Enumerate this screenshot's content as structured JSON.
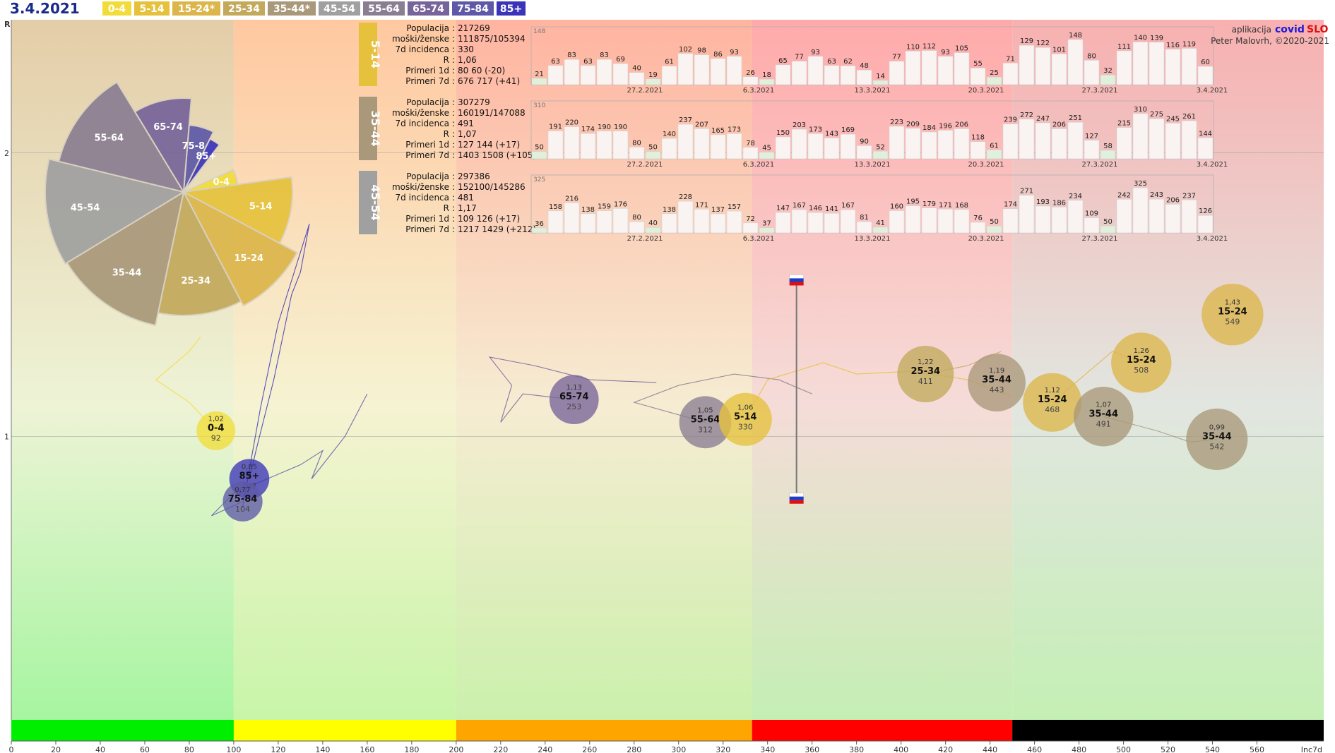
{
  "date": "3.4.2021",
  "colors": {
    "0-4": "#f2dc3a",
    "5-14": "#e6c23c",
    "15-24": "#dcb64a",
    "25-34": "#c2a95c",
    "35-44": "#a9987a",
    "45-54": "#a0a0a0",
    "55-64": "#8a7e92",
    "65-74": "#77649a",
    "75-84": "#5e58a8",
    "85+": "#3b34b8"
  },
  "legend": [
    {
      "label": "0-4",
      "key": "0-4"
    },
    {
      "label": "5-14",
      "key": "5-14"
    },
    {
      "label": "15-24*",
      "key": "15-24"
    },
    {
      "label": "25-34",
      "key": "25-34"
    },
    {
      "label": "35-44*",
      "key": "35-44"
    },
    {
      "label": "45-54",
      "key": "45-54"
    },
    {
      "label": "55-64",
      "key": "55-64"
    },
    {
      "label": "65-74",
      "key": "65-74"
    },
    {
      "label": "75-84",
      "key": "75-84"
    },
    {
      "label": "85+",
      "key": "85+"
    }
  ],
  "credit": {
    "app_prefix": "aplikacija",
    "app_name_a": "covid",
    "app_name_b": "SLO",
    "author": "Peter Malovrh, ©2020-2021"
  },
  "chart_data": {
    "type": "scatter",
    "x_axis": {
      "label": "Inc7d",
      "range": [
        0,
        590
      ],
      "ticks": [
        0,
        20,
        40,
        60,
        80,
        100,
        120,
        140,
        160,
        180,
        200,
        220,
        240,
        260,
        280,
        300,
        320,
        340,
        360,
        380,
        400,
        420,
        440,
        460,
        480,
        500,
        520,
        540,
        560
      ]
    },
    "y_axis": {
      "label": "R",
      "range": [
        0.0,
        2.47
      ],
      "ticks": [
        1,
        2
      ]
    },
    "zones": [
      {
        "from": 0,
        "to": 100,
        "color": "#00ee00"
      },
      {
        "from": 100,
        "to": 200,
        "color": "#ffff00"
      },
      {
        "from": 200,
        "to": 333,
        "color": "#ffa500"
      },
      {
        "from": 333,
        "to": 450,
        "color": "#ff0000"
      },
      {
        "from": 450,
        "to": 590,
        "color": "#000000"
      }
    ],
    "bubbles": [
      {
        "group": "0-4",
        "r": "1,02",
        "x": 92,
        "y": 1.02,
        "inc": "92"
      },
      {
        "group": "85+",
        "r": "0,85",
        "x": 107,
        "y": 0.85,
        "inc": "107"
      },
      {
        "group": "75-84",
        "r": "0,77",
        "x": 104,
        "y": 0.77,
        "inc": "104"
      },
      {
        "group": "65-74",
        "r": "1,13",
        "x": 253,
        "y": 1.13,
        "inc": "253"
      },
      {
        "group": "55-64",
        "r": "1,05",
        "x": 312,
        "y": 1.05,
        "inc": "312"
      },
      {
        "group": "5-14",
        "r": "1,06",
        "x": 330,
        "y": 1.06,
        "inc": "330"
      },
      {
        "group": "25-34",
        "r": "1,22",
        "x": 411,
        "y": 1.22,
        "inc": "411"
      },
      {
        "group": "35-44",
        "r": "1,19",
        "x": 443,
        "y": 1.19,
        "inc": "443"
      },
      {
        "group": "15-24",
        "r": "1,12",
        "x": 468,
        "y": 1.12,
        "inc": "468"
      },
      {
        "group": "35-44",
        "r": "1,07",
        "x": 491,
        "y": 1.07,
        "inc": "491"
      },
      {
        "group": "15-24",
        "r": "1,26",
        "x": 508,
        "y": 1.26,
        "inc": "508"
      },
      {
        "group": "35-44",
        "r": "0,99",
        "x": 542,
        "y": 0.99,
        "inc": "542"
      },
      {
        "group": "15-24",
        "r": "1,43",
        "x": 549,
        "y": 1.43,
        "inc": "549"
      }
    ],
    "slovenia_marker": {
      "x": 353,
      "y_top": 1.55,
      "y_bottom": 0.78
    },
    "pie": {
      "slices": [
        {
          "label": "0-4",
          "share": 0.045,
          "radius": 0.55
        },
        {
          "label": "5-14",
          "share": 0.1,
          "radius": 1.1
        },
        {
          "label": "15-24",
          "share": 0.095,
          "radius": 1.3
        },
        {
          "label": "25-34",
          "share": 0.11,
          "radius": 1.25
        },
        {
          "label": "35-44",
          "share": 0.13,
          "radius": 1.38
        },
        {
          "label": "45-54",
          "share": 0.125,
          "radius": 1.4
        },
        {
          "label": "55-64",
          "share": 0.125,
          "radius": 1.3
        },
        {
          "label": "65-74",
          "share": 0.1,
          "radius": 0.95
        },
        {
          "label": "75-84",
          "share": 0.06,
          "radius": 0.68
        },
        {
          "label": "85+",
          "share": 0.03,
          "radius": 0.6
        }
      ]
    },
    "panels": [
      {
        "group": "5-14",
        "stats": [
          {
            "k": "Populacija",
            "v": "217269"
          },
          {
            "k": "moški/ženske",
            "v": "111875/105394"
          },
          {
            "k": "7d incidenca",
            "v": "330"
          },
          {
            "k": "R",
            "v": "1,06"
          },
          {
            "k": "Primeri 1d",
            "v": "80 60 (-20)"
          },
          {
            "k": "Primeri 7d",
            "v": "676 717 (+41)"
          }
        ],
        "max": "148",
        "values": [
          21,
          63,
          83,
          63,
          83,
          69,
          40,
          19,
          61,
          102,
          98,
          86,
          93,
          26,
          18,
          65,
          77,
          93,
          63,
          62,
          48,
          14,
          77,
          110,
          112,
          93,
          105,
          55,
          25,
          71,
          129,
          122,
          101,
          148,
          80,
          32,
          111,
          140,
          139,
          116,
          119,
          60
        ],
        "dates": [
          "27.2.2021",
          "6.3.2021",
          "13.3.2021",
          "20.3.2021",
          "27.3.2021",
          "3.4.2021"
        ]
      },
      {
        "group": "35-44",
        "stats": [
          {
            "k": "Populacija",
            "v": "307279"
          },
          {
            "k": "moški/ženske",
            "v": "160191/147088"
          },
          {
            "k": "7d incidenca",
            "v": "491"
          },
          {
            "k": "R",
            "v": "1,07"
          },
          {
            "k": "Primeri 1d",
            "v": "127 144 (+17)"
          },
          {
            "k": "Primeri 7d",
            "v": "1403 1508 (+105)"
          }
        ],
        "max": "310",
        "values": [
          50,
          191,
          220,
          174,
          190,
          190,
          80,
          50,
          140,
          237,
          207,
          165,
          173,
          78,
          45,
          150,
          203,
          173,
          143,
          169,
          90,
          52,
          223,
          209,
          184,
          196,
          206,
          118,
          61,
          239,
          272,
          247,
          206,
          251,
          127,
          58,
          215,
          310,
          275,
          245,
          261,
          144
        ],
        "dates": [
          "27.2.2021",
          "6.3.2021",
          "13.3.2021",
          "20.3.2021",
          "27.3.2021",
          "3.4.2021"
        ]
      },
      {
        "group": "45-54",
        "stats": [
          {
            "k": "Populacija",
            "v": "297386"
          },
          {
            "k": "moški/ženske",
            "v": "152100/145286"
          },
          {
            "k": "7d incidenca",
            "v": "481"
          },
          {
            "k": "R",
            "v": "1,17"
          },
          {
            "k": "Primeri 1d",
            "v": "109 126 (+17)"
          },
          {
            "k": "Primeri 7d",
            "v": "1217 1429 (+212)"
          }
        ],
        "max": "325",
        "values": [
          36,
          158,
          216,
          138,
          159,
          176,
          80,
          40,
          138,
          228,
          171,
          137,
          157,
          72,
          37,
          147,
          167,
          146,
          141,
          167,
          81,
          41,
          160,
          195,
          179,
          171,
          168,
          76,
          50,
          174,
          271,
          193,
          186,
          234,
          109,
          50,
          242,
          325,
          243,
          206,
          237,
          126
        ],
        "dates": [
          "27.2.2021",
          "6.3.2021",
          "13.3.2021",
          "20.3.2021",
          "27.3.2021",
          "3.4.2021"
        ]
      }
    ]
  }
}
